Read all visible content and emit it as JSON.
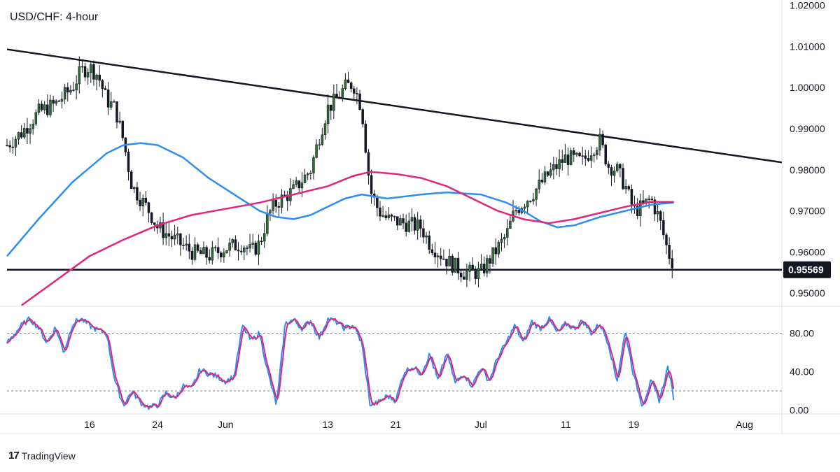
{
  "title": "USD/CHF: 4-hour",
  "brand": {
    "logo": "17",
    "name": "TradingView"
  },
  "price_label": "0.95569",
  "chart_data": {
    "type": "candlestick",
    "symbol": "USD/CHF",
    "timeframe": "4-hour",
    "price_axis": {
      "ticks": [
        0.95,
        0.96,
        0.97,
        0.98,
        0.99,
        1.0,
        1.01,
        1.02
      ],
      "tick_labels": [
        "0.95000",
        "0.96000",
        "0.97000",
        "0.98000",
        "0.99000",
        "1.00000",
        "1.01000",
        "1.02000"
      ],
      "range": [
        0.9468,
        1.0213
      ]
    },
    "time_axis": {
      "labels": [
        "16",
        "24",
        "Jun",
        "13",
        "21",
        "Jul",
        "11",
        "19",
        "Aug"
      ],
      "label_days": [
        16,
        24,
        32,
        44,
        52,
        62,
        72,
        80,
        93
      ],
      "day_range": [
        6.3,
        97.4
      ],
      "note_day_units": "days since May 1"
    },
    "trendlines": [
      {
        "name": "descending resistance",
        "from": {
          "day": 6.3,
          "price": 1.0093
        },
        "to": {
          "day": 97.4,
          "price": 0.9818
        }
      },
      {
        "name": "horizontal support",
        "from": {
          "day": 6.3,
          "price": 0.95569
        },
        "to": {
          "day": 97.4,
          "price": 0.95569
        }
      }
    ],
    "close_path": [
      [
        6.3,
        0.986
      ],
      [
        8,
        0.989
      ],
      [
        10,
        0.994
      ],
      [
        12,
        0.996
      ],
      [
        14,
        1.0
      ],
      [
        15,
        1.004
      ],
      [
        16,
        1.005
      ],
      [
        17,
        1.003
      ],
      [
        18,
        0.997
      ],
      [
        19,
        0.995
      ],
      [
        20,
        0.987
      ],
      [
        21,
        0.976
      ],
      [
        22,
        0.973
      ],
      [
        23,
        0.97
      ],
      [
        24,
        0.966
      ],
      [
        26,
        0.963
      ],
      [
        28,
        0.96
      ],
      [
        30,
        0.959
      ],
      [
        32,
        0.961
      ],
      [
        34,
        0.962
      ],
      [
        35,
        0.96
      ],
      [
        36,
        0.962
      ],
      [
        37,
        0.969
      ],
      [
        38,
        0.972
      ],
      [
        40,
        0.975
      ],
      [
        42,
        0.98
      ],
      [
        43,
        0.988
      ],
      [
        44,
        0.995
      ],
      [
        45,
        0.997
      ],
      [
        46,
        1.0
      ],
      [
        47,
        1.001
      ],
      [
        48,
        0.995
      ],
      [
        49,
        0.975
      ],
      [
        50,
        0.97
      ],
      [
        51,
        0.968
      ],
      [
        53,
        0.967
      ],
      [
        55,
        0.966
      ],
      [
        56,
        0.962
      ],
      [
        58,
        0.958
      ],
      [
        60,
        0.955
      ],
      [
        62,
        0.955
      ],
      [
        63,
        0.958
      ],
      [
        65,
        0.964
      ],
      [
        66,
        0.97
      ],
      [
        68,
        0.974
      ],
      [
        70,
        0.979
      ],
      [
        72,
        0.983
      ],
      [
        74,
        0.982
      ],
      [
        75,
        0.985
      ],
      [
        76,
        0.987
      ],
      [
        77,
        0.981
      ],
      [
        78,
        0.98
      ],
      [
        79,
        0.976
      ],
      [
        80,
        0.97
      ],
      [
        81,
        0.971
      ],
      [
        82,
        0.973
      ],
      [
        83,
        0.968
      ],
      [
        84,
        0.96
      ],
      [
        84.7,
        0.9568
      ]
    ],
    "candle_spacing_days": 0.34,
    "candle_range_avg": 0.0045,
    "moving_averages": [
      {
        "color": "#2e8def",
        "points": [
          [
            6.3,
            0.959
          ],
          [
            10,
            0.968
          ],
          [
            14,
            0.977
          ],
          [
            18,
            0.984
          ],
          [
            20,
            0.986
          ],
          [
            22,
            0.9865
          ],
          [
            24,
            0.986
          ],
          [
            27,
            0.983
          ],
          [
            30,
            0.978
          ],
          [
            33,
            0.974
          ],
          [
            36,
            0.97
          ],
          [
            38,
            0.9685
          ],
          [
            40,
            0.968
          ],
          [
            42,
            0.969
          ],
          [
            44,
            0.971
          ],
          [
            46,
            0.973
          ],
          [
            48,
            0.974
          ],
          [
            51,
            0.973
          ],
          [
            55,
            0.974
          ],
          [
            58,
            0.9745
          ],
          [
            62,
            0.974
          ],
          [
            65,
            0.972
          ],
          [
            67,
            0.97
          ],
          [
            69,
            0.9675
          ],
          [
            71,
            0.966
          ],
          [
            73,
            0.9665
          ],
          [
            76,
            0.9685
          ],
          [
            79,
            0.97
          ],
          [
            82,
            0.9715
          ],
          [
            84.7,
            0.972
          ]
        ]
      },
      {
        "color": "#e0267b",
        "points": [
          [
            8,
            0.947
          ],
          [
            12,
            0.953
          ],
          [
            16,
            0.959
          ],
          [
            20,
            0.963
          ],
          [
            24,
            0.9665
          ],
          [
            28,
            0.969
          ],
          [
            32,
            0.9705
          ],
          [
            36,
            0.972
          ],
          [
            40,
            0.974
          ],
          [
            44,
            0.976
          ],
          [
            47,
            0.9785
          ],
          [
            49,
            0.9795
          ],
          [
            52,
            0.979
          ],
          [
            55,
            0.978
          ],
          [
            58,
            0.976
          ],
          [
            61,
            0.973
          ],
          [
            64,
            0.97
          ],
          [
            67,
            0.968
          ],
          [
            70,
            0.967
          ],
          [
            73,
            0.968
          ],
          [
            76,
            0.9695
          ],
          [
            79,
            0.971
          ],
          [
            82,
            0.9722
          ],
          [
            84.7,
            0.9722
          ]
        ]
      }
    ],
    "stochastic": {
      "axis_ticks": [
        0,
        40,
        80
      ],
      "tick_labels": [
        "0.00",
        "40.00",
        "80.00"
      ],
      "levels": [
        20,
        80
      ],
      "range": [
        -4,
        108
      ],
      "k_color": "#2e8def",
      "d_color": "#e0267b",
      "k_path": [
        [
          6.3,
          70
        ],
        [
          8,
          88
        ],
        [
          9,
          95
        ],
        [
          10,
          86
        ],
        [
          11,
          70
        ],
        [
          12,
          86
        ],
        [
          13,
          60
        ],
        [
          14,
          90
        ],
        [
          15,
          95
        ],
        [
          16,
          88
        ],
        [
          17,
          83
        ],
        [
          18,
          80
        ],
        [
          19,
          30
        ],
        [
          20,
          5
        ],
        [
          21,
          20
        ],
        [
          22,
          8
        ],
        [
          23,
          3
        ],
        [
          24,
          5
        ],
        [
          25,
          18
        ],
        [
          26,
          12
        ],
        [
          27,
          25
        ],
        [
          28,
          22
        ],
        [
          29,
          42
        ],
        [
          30,
          38
        ],
        [
          31,
          35
        ],
        [
          32,
          30
        ],
        [
          33,
          35
        ],
        [
          34,
          88
        ],
        [
          35,
          72
        ],
        [
          36,
          80
        ],
        [
          37,
          38
        ],
        [
          38,
          5
        ],
        [
          39,
          90
        ],
        [
          40,
          94
        ],
        [
          41,
          85
        ],
        [
          42,
          93
        ],
        [
          43,
          75
        ],
        [
          44,
          95
        ],
        [
          45,
          92
        ],
        [
          46,
          85
        ],
        [
          47,
          88
        ],
        [
          48,
          70
        ],
        [
          49,
          5
        ],
        [
          50,
          8
        ],
        [
          51,
          15
        ],
        [
          52,
          10
        ],
        [
          53,
          40
        ],
        [
          54,
          45
        ],
        [
          55,
          38
        ],
        [
          56,
          58
        ],
        [
          57,
          30
        ],
        [
          58,
          60
        ],
        [
          59,
          28
        ],
        [
          60,
          38
        ],
        [
          61,
          25
        ],
        [
          62,
          45
        ],
        [
          63,
          30
        ],
        [
          64,
          55
        ],
        [
          65,
          70
        ],
        [
          66,
          88
        ],
        [
          67,
          70
        ],
        [
          68,
          92
        ],
        [
          69,
          85
        ],
        [
          70,
          95
        ],
        [
          71,
          80
        ],
        [
          72,
          90
        ],
        [
          73,
          85
        ],
        [
          74,
          93
        ],
        [
          75,
          80
        ],
        [
          76,
          90
        ],
        [
          77,
          70
        ],
        [
          78,
          30
        ],
        [
          79,
          82
        ],
        [
          80,
          35
        ],
        [
          81,
          5
        ],
        [
          82,
          30
        ],
        [
          83,
          10
        ],
        [
          84,
          45
        ],
        [
          84.7,
          12
        ]
      ]
    }
  }
}
